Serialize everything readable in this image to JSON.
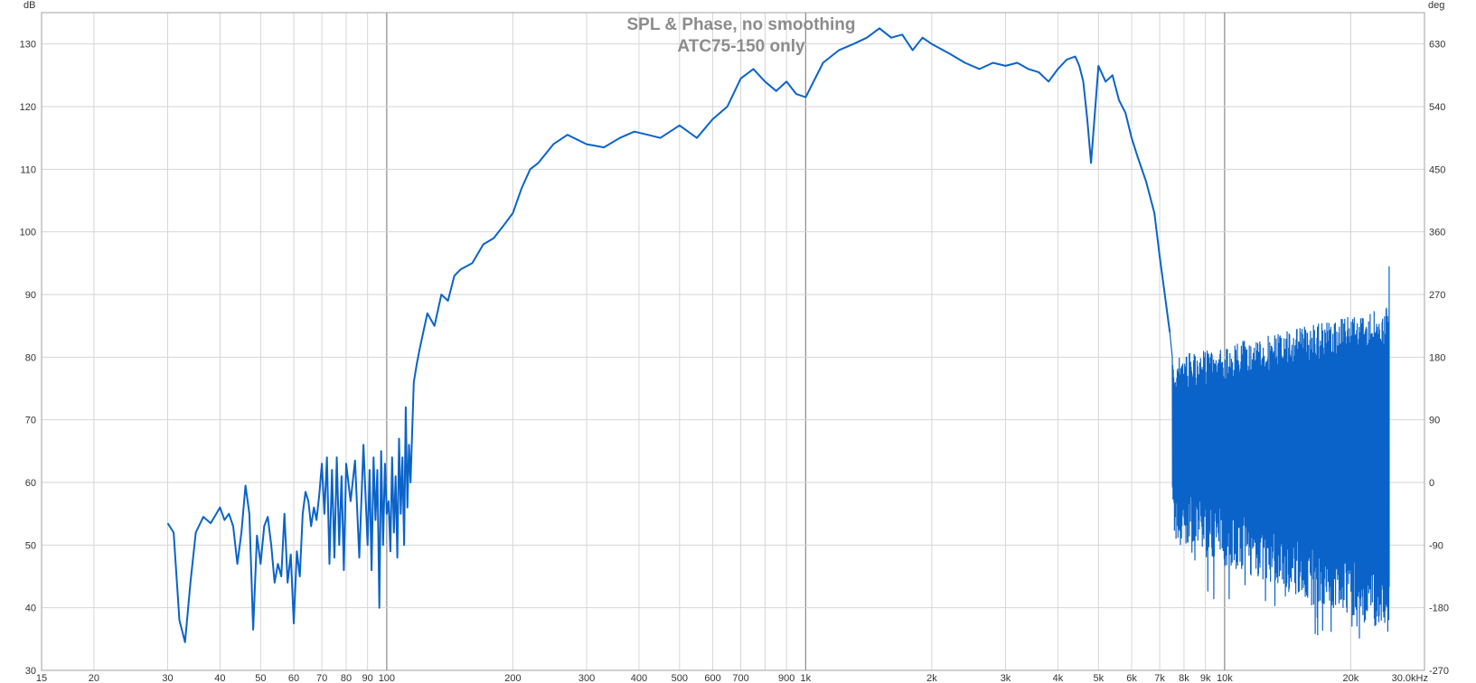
{
  "chart_data": {
    "type": "line",
    "title": "SPL & Phase, no smoothing",
    "subtitle": "ATC75-150 only",
    "xlabel": "",
    "ylabel": "",
    "y_unit_left": "dB",
    "y_unit_right": "deg",
    "x_scale": "log",
    "xlim": [
      15,
      30000
    ],
    "ylim": [
      30,
      135
    ],
    "y2lim": [
      -270,
      675
    ],
    "grid": true,
    "legend": "none",
    "series_color": "#0a63c9",
    "x_ticks": [
      15,
      20,
      30,
      40,
      50,
      60,
      70,
      80,
      90,
      100,
      200,
      300,
      400,
      500,
      600,
      700,
      900,
      1000,
      2000,
      3000,
      4000,
      5000,
      6000,
      7000,
      8000,
      9000,
      10000,
      20000,
      30000
    ],
    "x_tick_labels": [
      "15",
      "20",
      "30",
      "40",
      "50",
      "60",
      "70",
      "80",
      "90",
      "100",
      "200",
      "300",
      "400",
      "500",
      "600",
      "700",
      "900",
      "1k",
      "2k",
      "3k",
      "4k",
      "5k",
      "6k",
      "7k",
      "8k",
      "9k",
      "10k",
      "20k",
      "30.0kHz"
    ],
    "y_ticks": [
      30,
      40,
      50,
      60,
      70,
      80,
      90,
      100,
      110,
      120,
      130
    ],
    "y_tick_labels": [
      "30",
      "40",
      "50",
      "60",
      "70",
      "80",
      "90",
      "100",
      "110",
      "120",
      "130"
    ],
    "y2_ticks": [
      -270,
      -180,
      -90,
      0,
      90,
      180,
      270,
      360,
      450,
      540,
      630
    ],
    "y2_tick_labels": [
      "-270",
      "-180",
      "-90",
      "0",
      "90",
      "180",
      "270",
      "360",
      "450",
      "540",
      "630"
    ],
    "series": [
      {
        "x": [
          30,
          31,
          32,
          33,
          34,
          35,
          36.5,
          38,
          40,
          41,
          42,
          43,
          44,
          45,
          46,
          47,
          48,
          49,
          50,
          51,
          52,
          53,
          54,
          55,
          56,
          57,
          58,
          59,
          60,
          61,
          62,
          63,
          64,
          65,
          66,
          67,
          68,
          69,
          70,
          71,
          72,
          73,
          74,
          75,
          76,
          77,
          78,
          79,
          80,
          82,
          84,
          86,
          88,
          90,
          91,
          92,
          93,
          94,
          95,
          96,
          97,
          98,
          99,
          100,
          101,
          102,
          103,
          104,
          105,
          106,
          107,
          108,
          109,
          110,
          111,
          112,
          113,
          114,
          116,
          118,
          120,
          125,
          130,
          135,
          140,
          145,
          150,
          160,
          170,
          180,
          190,
          200,
          210,
          220,
          230,
          250,
          270,
          300,
          330,
          360,
          390,
          420,
          450,
          500,
          550,
          600,
          650,
          700,
          750,
          800,
          850,
          900,
          950,
          1000,
          1100,
          1200,
          1300,
          1400,
          1500,
          1600,
          1700,
          1800,
          1900,
          2000,
          2200,
          2400,
          2600,
          2800,
          3000,
          3200,
          3400,
          3600,
          3800,
          4000,
          4200,
          4400,
          4500,
          4600,
          4700,
          4800,
          5000,
          5200,
          5400,
          5600,
          5800,
          6000,
          6200,
          6500,
          6800,
          7000,
          7200,
          7400
        ],
        "y": [
          53.5,
          52,
          38,
          34.5,
          44,
          52,
          54.5,
          53.5,
          56,
          54,
          55,
          53,
          47,
          52,
          59.5,
          55,
          36.5,
          51.5,
          47,
          53,
          54.5,
          50,
          44,
          47,
          45,
          55,
          44,
          48.5,
          37.5,
          49,
          45,
          55,
          58.5,
          57,
          53,
          56,
          54,
          58,
          63,
          55,
          64,
          47,
          62,
          48,
          64,
          50,
          61,
          46,
          63,
          57,
          63.5,
          48,
          66,
          50,
          62,
          46,
          64,
          54,
          62,
          40,
          65,
          50,
          63,
          55,
          57,
          49,
          64,
          52,
          61,
          48,
          67,
          55,
          64,
          50,
          72,
          56,
          66,
          60,
          76,
          79,
          81.5,
          87,
          85,
          90,
          89,
          93,
          94,
          95,
          98,
          99,
          101,
          103,
          107,
          110,
          111,
          114,
          115.5,
          114,
          113.5,
          115,
          116,
          115.5,
          115,
          117,
          115,
          118,
          120,
          124.5,
          126,
          124,
          122.5,
          124,
          122,
          121.5,
          127,
          129,
          130,
          131,
          132.5,
          131,
          131.5,
          129,
          131,
          130,
          128.5,
          127,
          126,
          127,
          126.5,
          127,
          126,
          125.5,
          124,
          126,
          127.5,
          128,
          126.5,
          124,
          118,
          111,
          126.5,
          124,
          125,
          121,
          119,
          115,
          112,
          108,
          103,
          96,
          90,
          84
        ]
      }
    ],
    "noise_region": {
      "x_start": 7500,
      "x_end": 24700,
      "upper_envelope": [
        80,
        88
      ],
      "lower_envelope": [
        50,
        36
      ],
      "spike_max": 94.5
    }
  }
}
